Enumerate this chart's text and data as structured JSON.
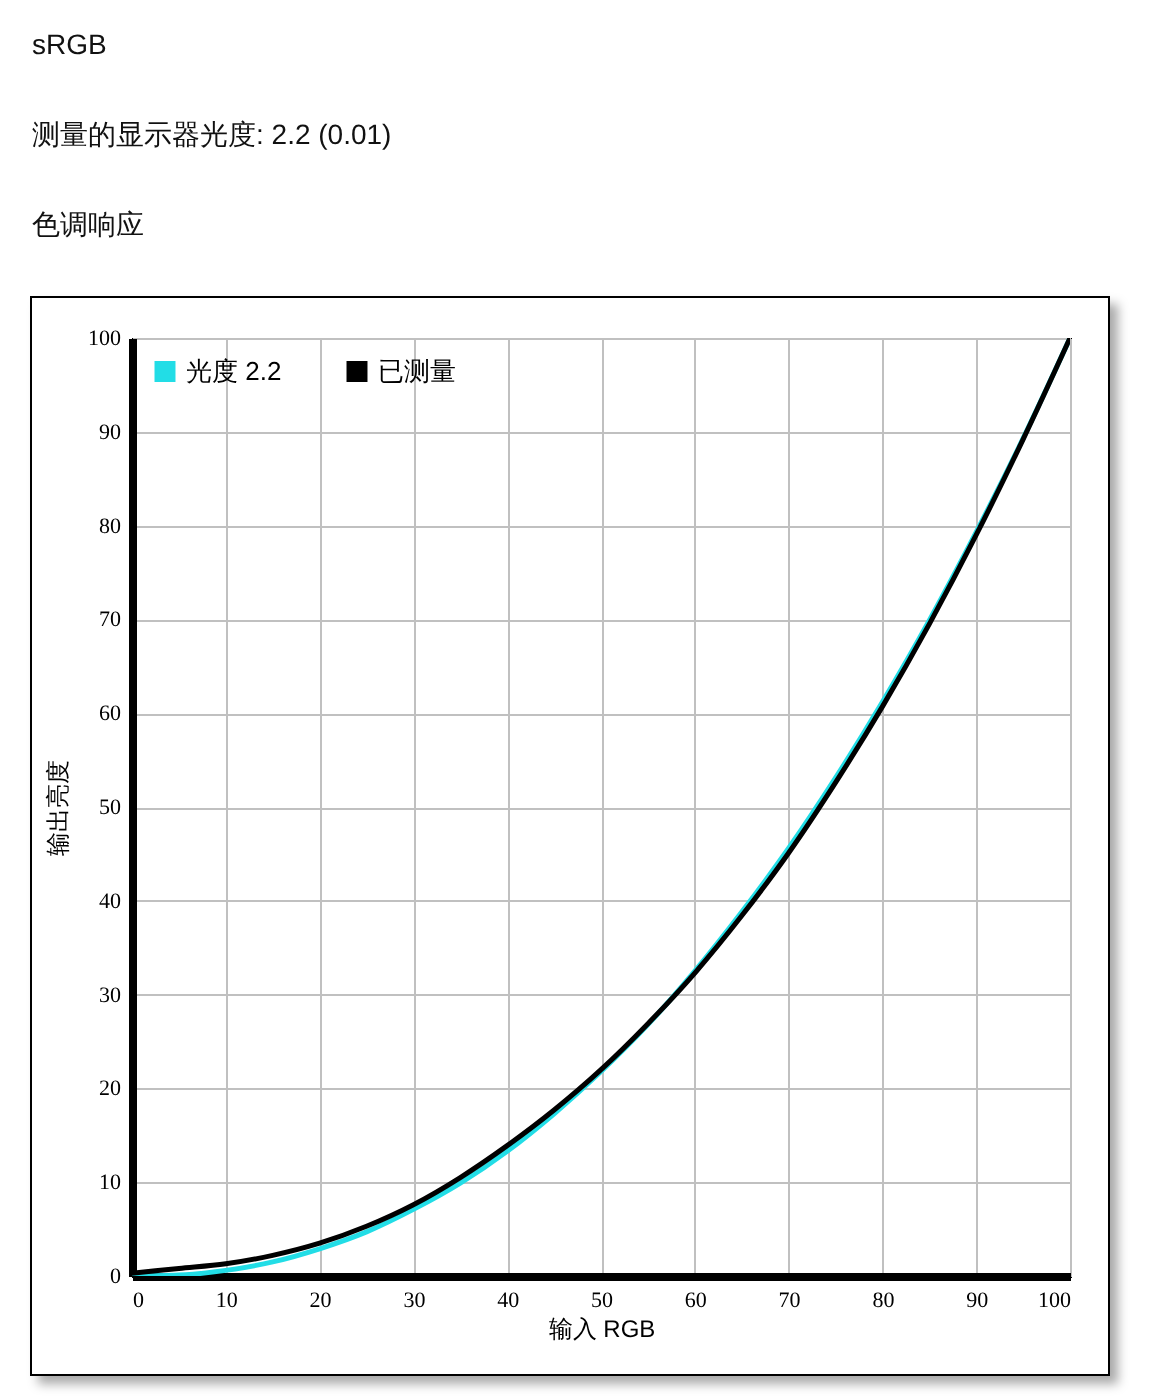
{
  "chart_data": {
    "type": "line",
    "title": "sRGB",
    "subtitle": "测量的显示器光度: 2.2 (0.01)",
    "annotations": [
      "色调响应"
    ],
    "xlabel": "输入 RGB",
    "ylabel": "输出亮度",
    "x": [
      0,
      5,
      10,
      15,
      20,
      25,
      30,
      35,
      40,
      45,
      50,
      55,
      60,
      65,
      70,
      75,
      80,
      85,
      90,
      95,
      100
    ],
    "series": [
      {
        "name": "光度 2.2",
        "color": "#22dde6",
        "values": [
          0,
          0.1,
          0.6,
          1.5,
          2.9,
          4.7,
          7.1,
          9.9,
          13.3,
          17.3,
          21.8,
          26.8,
          32.5,
          38.8,
          45.6,
          53.1,
          61.2,
          69.9,
          79.3,
          89.3,
          100
        ]
      },
      {
        "name": "已测量",
        "color": "#000000",
        "values": [
          0.3,
          0.8,
          1.3,
          2.2,
          3.5,
          5.3,
          7.6,
          10.5,
          13.9,
          17.7,
          22.0,
          26.9,
          32.3,
          38.4,
          45.1,
          52.6,
          60.7,
          69.5,
          79.0,
          89.2,
          100
        ]
      }
    ],
    "xlim": [
      0,
      100
    ],
    "ylim": [
      0,
      100
    ],
    "xticks": [
      0,
      10,
      20,
      30,
      40,
      50,
      60,
      70,
      80,
      90,
      100
    ],
    "yticks": [
      0,
      10,
      20,
      30,
      40,
      50,
      60,
      70,
      80,
      90,
      100
    ],
    "grid": true,
    "legend": "top left"
  }
}
